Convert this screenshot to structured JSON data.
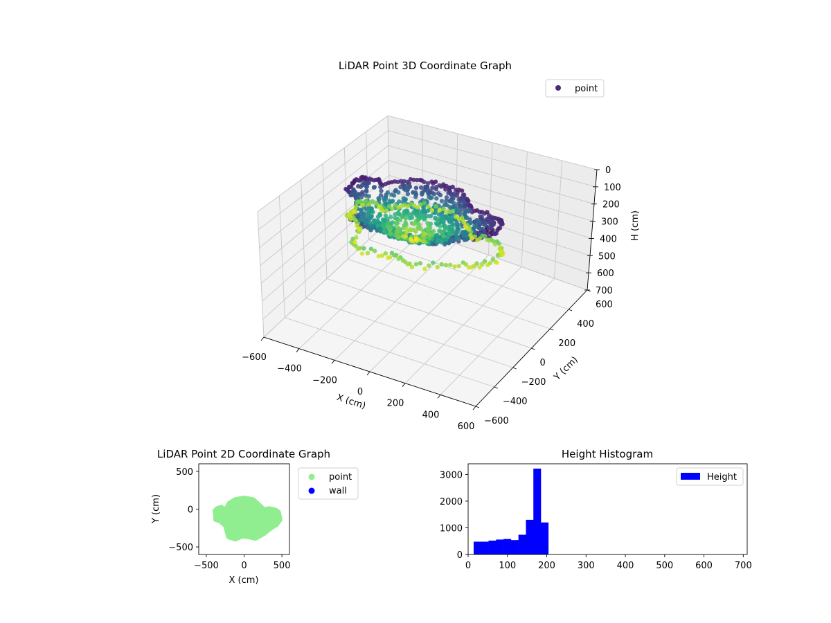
{
  "chart_data": [
    {
      "type": "scatter3d",
      "title": "LiDAR Point 3D Coordinate Graph",
      "xlabel": "X (cm)",
      "ylabel": "Y (cm)",
      "zlabel": "H (cm)",
      "xlim": [
        -600,
        600
      ],
      "ylim": [
        -600,
        600
      ],
      "zlim": [
        0,
        700
      ],
      "z_inverted": true,
      "x_ticks": [
        "−600",
        "−400",
        "−200",
        "0",
        "200",
        "400",
        "600"
      ],
      "y_ticks": [
        "−600",
        "−400",
        "−200",
        "0",
        "200",
        "400",
        "600"
      ],
      "z_ticks": [
        "0",
        "100",
        "200",
        "300",
        "400",
        "500",
        "600",
        "700"
      ],
      "grid": true,
      "colormap": "viridis",
      "legend": {
        "position": "upper-right",
        "entries": [
          {
            "name": "point",
            "color": "#472c7a"
          }
        ]
      },
      "point_cloud": {
        "x_range": [
          -380,
          450
        ],
        "y_range": [
          -400,
          150
        ],
        "h_range": [
          0,
          200
        ],
        "description_color": "points colored by height"
      }
    },
    {
      "type": "scatter",
      "title": "LiDAR Point 2D Coordinate Graph",
      "xlabel": "X (cm)",
      "ylabel": "Y (cm)",
      "xlim": [
        -600,
        600
      ],
      "ylim": [
        -600,
        600
      ],
      "x_ticks": [
        "−500",
        "0",
        "500"
      ],
      "y_ticks": [
        "−500",
        "0",
        "500"
      ],
      "legend": {
        "position": "outside-right",
        "entries": [
          {
            "name": "point",
            "color": "#90ee90"
          },
          {
            "name": "wall",
            "color": "#0000ff"
          }
        ]
      },
      "series": [
        {
          "name": "point",
          "color": "#90ee90",
          "outline_xy": [
            [
              -380,
              -80
            ],
            [
              -390,
              -20
            ],
            [
              -360,
              10
            ],
            [
              -300,
              30
            ],
            [
              -250,
              -10
            ],
            [
              -200,
              80
            ],
            [
              -120,
              130
            ],
            [
              0,
              150
            ],
            [
              120,
              130
            ],
            [
              200,
              60
            ],
            [
              260,
              0
            ],
            [
              340,
              10
            ],
            [
              420,
              -10
            ],
            [
              460,
              -40
            ],
            [
              480,
              -140
            ],
            [
              430,
              -210
            ],
            [
              360,
              -250
            ],
            [
              260,
              -330
            ],
            [
              150,
              -390
            ],
            [
              60,
              -370
            ],
            [
              -20,
              -360
            ],
            [
              -120,
              -400
            ],
            [
              -210,
              -370
            ],
            [
              -250,
              -220
            ],
            [
              -320,
              -160
            ],
            [
              -380,
              -140
            ]
          ]
        },
        {
          "name": "wall",
          "color": "#0000ff",
          "values": []
        }
      ]
    },
    {
      "type": "bar",
      "title": "Height Histogram",
      "xlim": [
        0,
        710
      ],
      "ylim": [
        0,
        3400
      ],
      "x_ticks": [
        "0",
        "100",
        "200",
        "300",
        "400",
        "500",
        "600",
        "700"
      ],
      "y_ticks": [
        "0",
        "1000",
        "2000",
        "3000"
      ],
      "legend": {
        "position": "upper-right",
        "entries": [
          {
            "name": "Height",
            "color": "#0000ff"
          }
        ]
      },
      "bin_edges": [
        14,
        33,
        52,
        71,
        90,
        109,
        128,
        147,
        166,
        185,
        204
      ],
      "values": [
        480,
        480,
        520,
        560,
        580,
        540,
        740,
        1300,
        3220,
        1200
      ],
      "color": "#0000ff"
    }
  ]
}
